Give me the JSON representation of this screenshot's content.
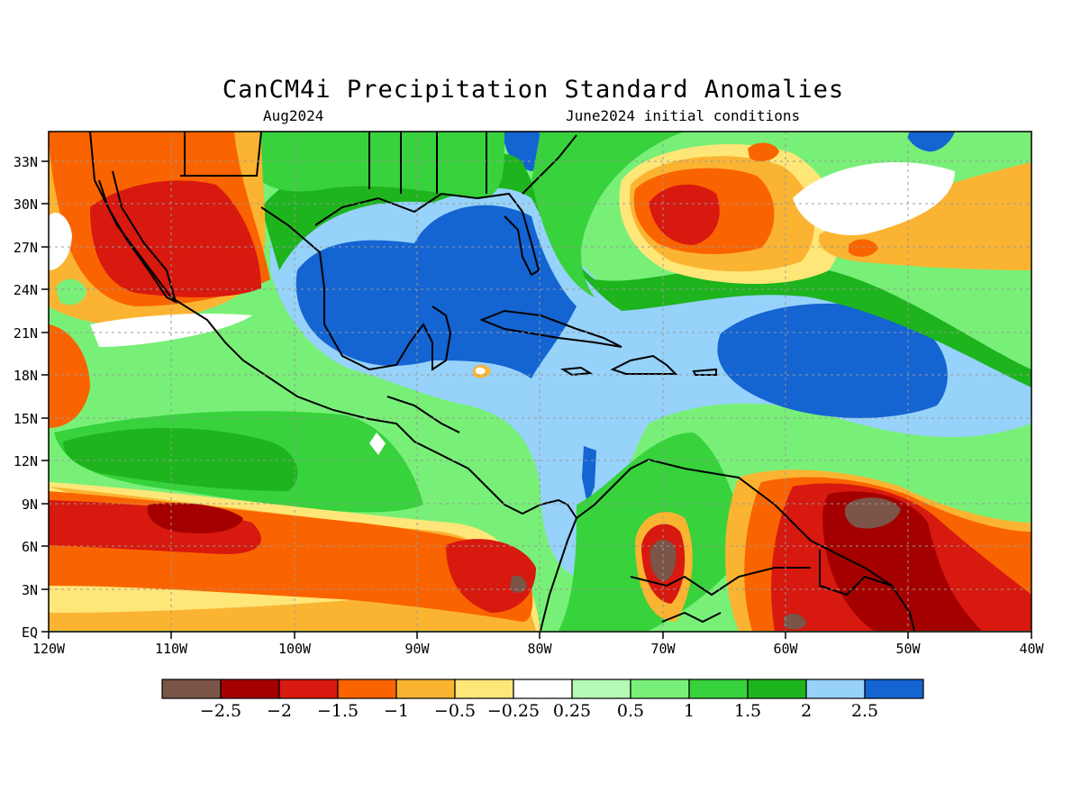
{
  "title": "CanCM4i Precipitation Standard Anomalies",
  "subtitle_left": "Aug2024",
  "subtitle_right": "June2024 initial conditions",
  "lat_labels": [
    "33N",
    "30N",
    "27N",
    "24N",
    "21N",
    "18N",
    "15N",
    "12N",
    "9N",
    "6N",
    "3N",
    "EQ"
  ],
  "lon_labels": [
    "120W",
    "110W",
    "100W",
    "90W",
    "80W",
    "70W",
    "60W",
    "50W",
    "40W"
  ],
  "colorbar": {
    "colors": [
      "#7a5548",
      "#a50000",
      "#d7190f",
      "#fa6400",
      "#fab432",
      "#ffe678",
      "#ffffff",
      "#b4fab4",
      "#78f078",
      "#37d23c",
      "#1eb41e",
      "#96d2fa",
      "#1464d2"
    ],
    "labels": [
      "−2.5",
      "−2",
      "−1.5",
      "−1",
      "−0.5",
      "−0.25",
      "0.25",
      "0.5",
      "1",
      "1.5",
      "2",
      "2.5"
    ]
  },
  "map_extent": {
    "lon": [
      -120,
      -40
    ],
    "lat": [
      0,
      35
    ]
  }
}
